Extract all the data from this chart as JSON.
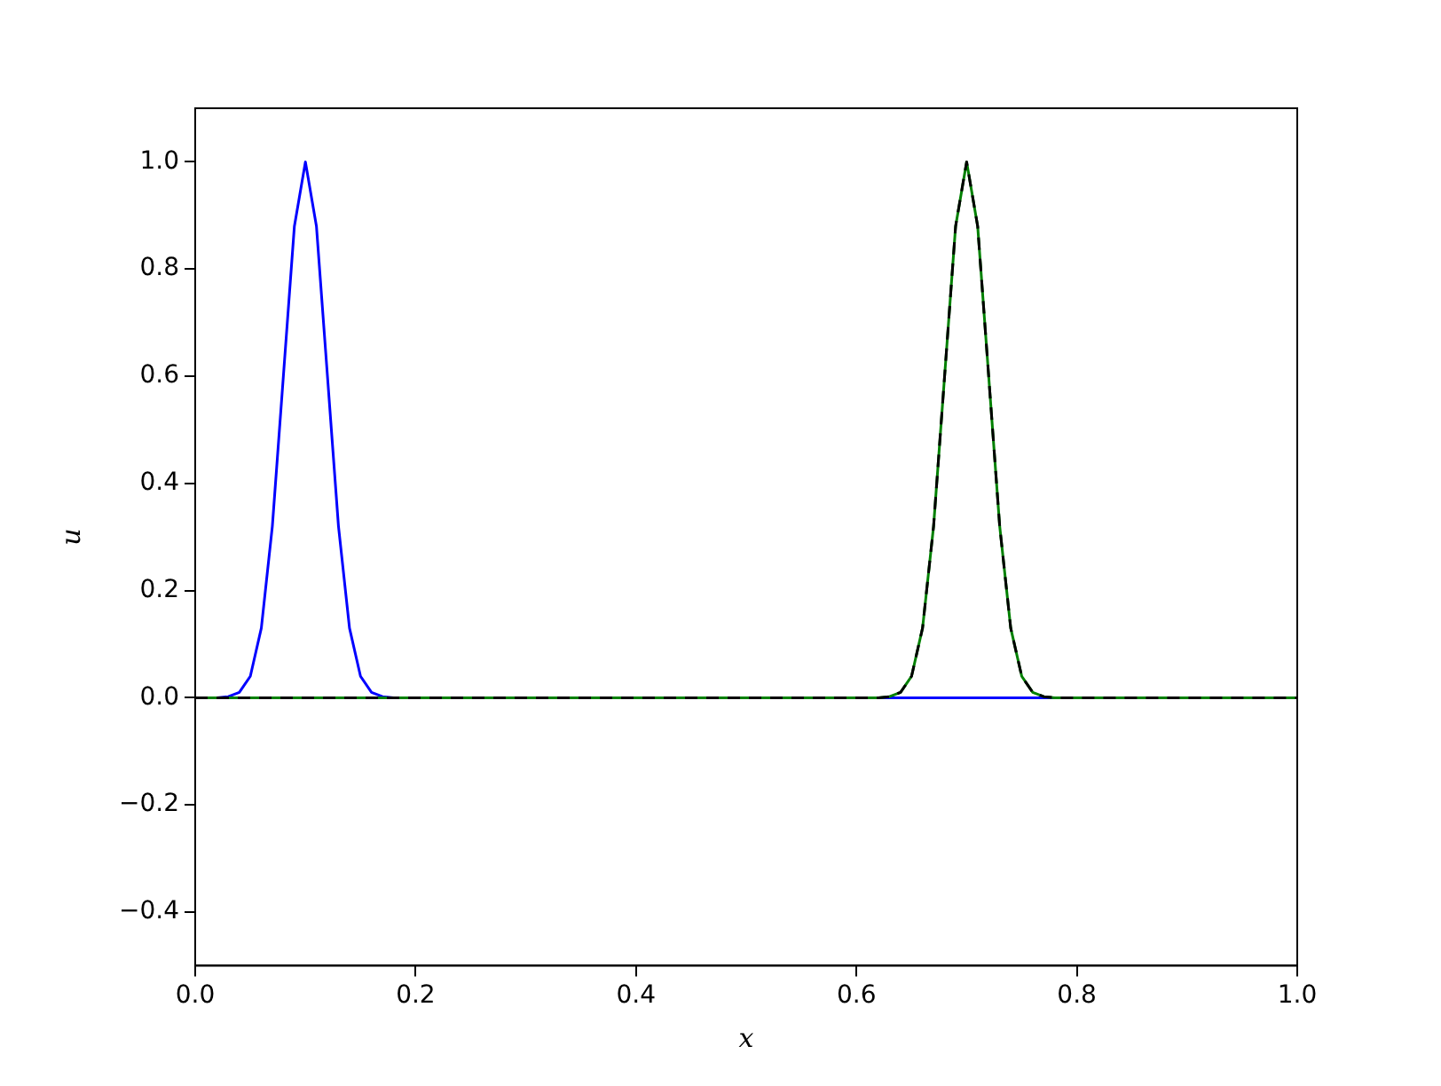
{
  "chart_data": {
    "type": "line",
    "xlabel": "x",
    "ylabel": "u",
    "xlim": [
      0,
      1
    ],
    "ylim": [
      -0.5,
      1.1
    ],
    "xticks": [
      {
        "value": 0,
        "label": "0.0"
      },
      0.2,
      0.4,
      0.6,
      0.8,
      {
        "value": 1,
        "label": "1.0"
      }
    ],
    "yticks": [
      {
        "value": -0.4,
        "label": "−0.4"
      },
      {
        "value": -0.2,
        "label": "−0.2"
      },
      {
        "value": 0,
        "label": "0.0"
      },
      0.2,
      0.4,
      0.6,
      0.8,
      {
        "value": 1,
        "label": "1.0"
      }
    ],
    "grid": false,
    "legend": false,
    "marker": "none",
    "series": [
      {
        "color": "#0000ff",
        "line_style": "solid",
        "x": [
          0,
          0.02,
          0.03,
          0.04,
          0.05,
          0.06,
          0.07,
          0.08,
          0.09,
          0.1,
          0.11,
          0.12,
          0.13,
          0.14,
          0.15,
          0.16,
          0.17,
          0.18,
          1
        ],
        "values": [
          0,
          0,
          0.002,
          0.01,
          0.04,
          0.13,
          0.32,
          0.6,
          0.88,
          1,
          0.88,
          0.6,
          0.32,
          0.13,
          0.04,
          0.01,
          0.002,
          0,
          0
        ]
      },
      {
        "color": "#008000",
        "line_style": "solid",
        "x": [
          0,
          0.62,
          0.63,
          0.64,
          0.65,
          0.66,
          0.67,
          0.68,
          0.69,
          0.7,
          0.71,
          0.72,
          0.73,
          0.74,
          0.75,
          0.76,
          0.77,
          0.78,
          1
        ],
        "values": [
          0,
          0,
          0.002,
          0.01,
          0.04,
          0.13,
          0.32,
          0.6,
          0.88,
          1,
          0.88,
          0.6,
          0.32,
          0.13,
          0.04,
          0.01,
          0.002,
          0,
          0
        ]
      },
      {
        "color": "#000000",
        "line_style": "dashed",
        "x": [
          0,
          0.62,
          0.63,
          0.64,
          0.65,
          0.66,
          0.67,
          0.68,
          0.69,
          0.7,
          0.71,
          0.72,
          0.73,
          0.74,
          0.75,
          0.76,
          0.77,
          0.78,
          1
        ],
        "values": [
          0,
          0,
          0.002,
          0.01,
          0.04,
          0.13,
          0.32,
          0.6,
          0.88,
          1,
          0.88,
          0.6,
          0.32,
          0.13,
          0.04,
          0.01,
          0.002,
          0,
          0
        ]
      }
    ]
  }
}
